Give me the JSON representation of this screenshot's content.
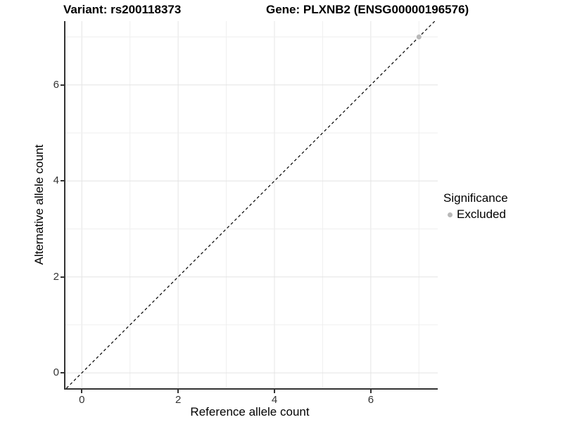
{
  "titles": {
    "left": "Variant: rs200118373",
    "right": "Gene: PLXNB2 (ENSG00000196576)"
  },
  "chart_data": {
    "type": "scatter",
    "title": "Variant: rs200118373   Gene: PLXNB2 (ENSG00000196576)",
    "xlabel": "Reference allele count",
    "ylabel": "Alternative allele count",
    "xlim": [
      -0.34,
      7.39
    ],
    "ylim": [
      -0.32,
      7.33
    ],
    "x_major_ticks": [
      0,
      2,
      4,
      6
    ],
    "y_major_ticks": [
      0,
      2,
      4,
      6
    ],
    "x_gridlines": [
      0,
      1,
      2,
      3,
      4,
      5,
      6,
      7
    ],
    "y_gridlines": [
      0,
      1,
      2,
      3,
      4,
      5,
      6,
      7
    ],
    "grid": true,
    "points": [
      {
        "x": 7,
        "y": 7,
        "series": "Excluded"
      }
    ],
    "reference_line": {
      "kind": "identity",
      "slope": 1,
      "intercept": 0,
      "linetype": "dashed",
      "color": "#000000"
    },
    "legend": {
      "title": "Significance",
      "position": "right",
      "entries": [
        {
          "label": "Excluded",
          "color": "#b9b9b9",
          "marker": "circle"
        }
      ]
    },
    "style": {
      "axis_line_color": "#333333",
      "grid_major_color": "#e4e4e4",
      "grid_minor_color": "#efefef",
      "point_color": "#b9b9b9",
      "point_radius": 3.5,
      "tick_text_color": "#333333",
      "background": "#ffffff"
    }
  }
}
